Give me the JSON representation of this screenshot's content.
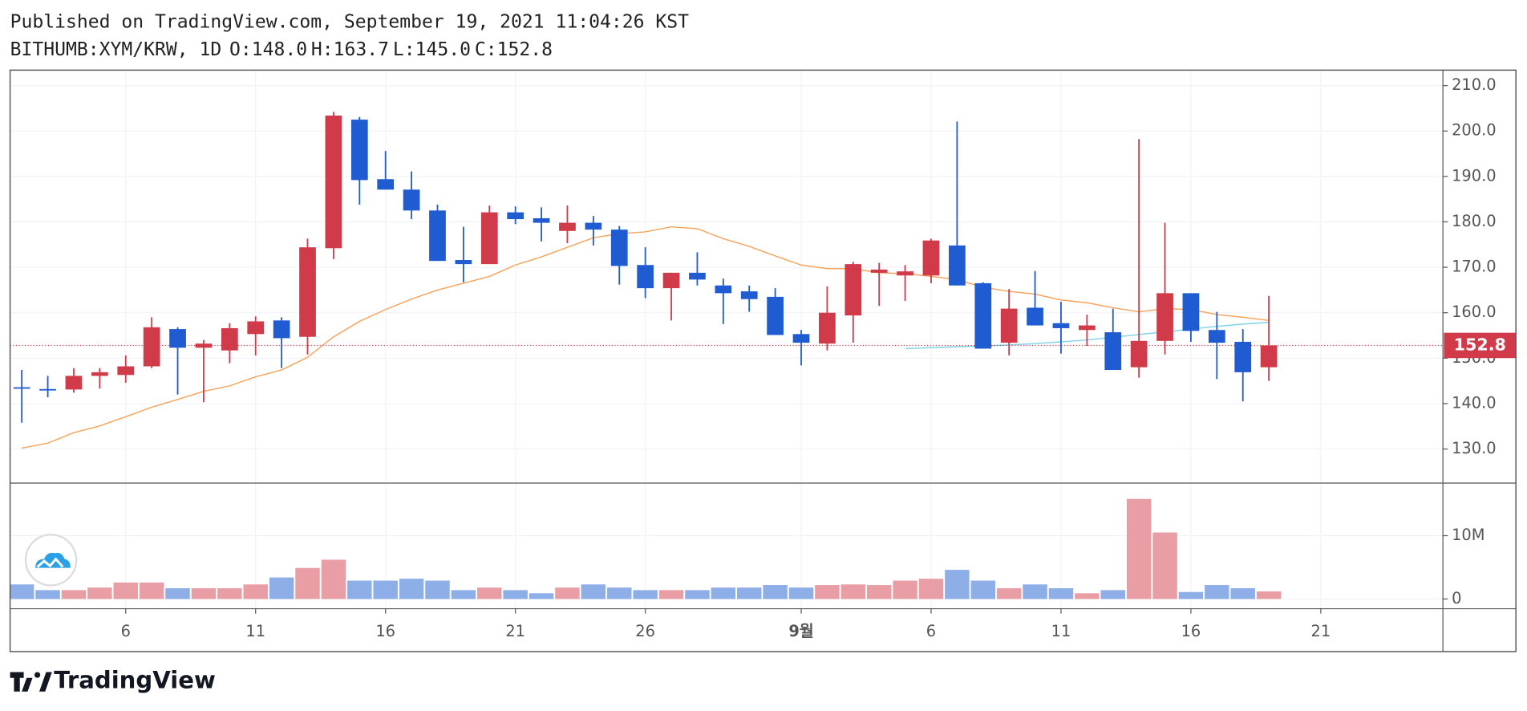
{
  "chart_data": {
    "type": "candlestick",
    "title": "Published on TradingView.com, September 19, 2021 11:04:26 KST",
    "subtitle": "BITHUMB:XYM/KRW, 1D",
    "ohlc_labels": [
      "O:148.0",
      "H:163.7",
      "L:145.0",
      "C:152.8"
    ],
    "brand": "TradingView",
    "x": [
      0,
      1,
      2,
      3,
      4,
      5,
      6,
      7,
      8,
      9,
      10,
      11,
      12,
      13,
      14,
      15,
      16,
      17,
      18,
      19,
      20,
      21,
      22,
      23,
      24,
      25,
      26,
      27,
      28,
      29,
      30,
      31,
      32,
      33,
      34,
      35,
      36,
      37,
      38,
      39,
      40,
      41,
      42,
      43,
      44,
      45,
      46,
      47,
      48
    ],
    "open": [
      143.6,
      143.2,
      143.1,
      146.1,
      146.3,
      148.2,
      156.4,
      152.3,
      151.7,
      155.3,
      158.3,
      154.7,
      174.2,
      202.5,
      189.4,
      187.1,
      182.5,
      171.6,
      170.7,
      182.1,
      180.8,
      178.0,
      179.8,
      178.3,
      170.5,
      165.4,
      168.8,
      166.0,
      164.7,
      163.5,
      155.3,
      153.2,
      159.4,
      168.8,
      168.2,
      168.2,
      174.8,
      166.5,
      153.4,
      161.1,
      157.7,
      156.2,
      155.7,
      148.0,
      153.8,
      164.3,
      156.2,
      153.6,
      148.0
    ],
    "high": [
      147.4,
      146.1,
      147.8,
      147.8,
      150.6,
      159.0,
      156.8,
      154.0,
      157.7,
      159.2,
      159.0,
      176.3,
      204.2,
      203.1,
      195.6,
      191.1,
      183.8,
      178.9,
      183.6,
      183.4,
      183.2,
      183.6,
      181.3,
      179.1,
      174.4,
      168.8,
      173.3,
      167.5,
      166.0,
      165.4,
      156.2,
      165.8,
      171.2,
      171.0,
      170.5,
      176.3,
      202.1,
      166.7,
      165.2,
      169.2,
      162.4,
      159.6,
      160.9,
      198.2,
      179.8,
      164.3,
      160.2,
      156.4,
      163.7
    ],
    "low": [
      135.8,
      141.4,
      142.4,
      143.3,
      144.6,
      147.8,
      142.0,
      140.3,
      148.9,
      150.6,
      147.8,
      150.8,
      171.8,
      183.8,
      187.1,
      180.6,
      171.4,
      166.7,
      170.7,
      179.5,
      175.7,
      175.3,
      174.8,
      166.2,
      163.2,
      158.3,
      166.0,
      157.5,
      160.2,
      155.1,
      148.4,
      151.7,
      153.4,
      161.5,
      162.6,
      166.5,
      166.0,
      152.1,
      150.6,
      157.2,
      151.0,
      152.7,
      147.4,
      145.7,
      150.8,
      153.6,
      145.4,
      140.5,
      145.0
    ],
    "close": [
      143.4,
      143.0,
      146.1,
      146.9,
      148.2,
      156.8,
      152.3,
      153.2,
      156.6,
      158.1,
      154.4,
      174.4,
      203.4,
      189.2,
      187.1,
      182.5,
      171.4,
      170.7,
      182.1,
      180.6,
      179.8,
      179.8,
      178.3,
      170.3,
      165.4,
      168.8,
      167.3,
      164.3,
      163.0,
      155.1,
      153.4,
      160.0,
      170.7,
      169.5,
      169.1,
      175.9,
      166.0,
      152.1,
      160.9,
      157.2,
      156.6,
      157.2,
      147.4,
      153.8,
      164.3,
      156.0,
      153.4,
      146.9,
      152.8
    ],
    "up_color": "#d13a48",
    "down_color": "#1f5bd1",
    "overlays": [
      {
        "color": "#f7a35c",
        "values": [
          130.2,
          131.3,
          133.6,
          135.1,
          137.1,
          139.2,
          140.9,
          142.7,
          143.9,
          145.9,
          147.4,
          150.2,
          154.7,
          158.1,
          160.7,
          163.0,
          165.0,
          166.5,
          168.0,
          170.5,
          172.3,
          174.4,
          176.5,
          177.4,
          177.8,
          178.9,
          178.5,
          176.3,
          174.6,
          172.5,
          170.5,
          169.7,
          169.7,
          168.8,
          168.6,
          168.0,
          167.3,
          165.6,
          164.7,
          164.1,
          162.8,
          162.2,
          161.1,
          160.2,
          160.9,
          160.7,
          159.6,
          159.0,
          158.3
        ]
      },
      {
        "color": "#7fd3e8",
        "values": [
          null,
          null,
          null,
          null,
          null,
          null,
          null,
          null,
          null,
          null,
          null,
          null,
          null,
          null,
          null,
          null,
          null,
          null,
          null,
          null,
          null,
          null,
          null,
          null,
          null,
          null,
          null,
          null,
          null,
          null,
          null,
          null,
          null,
          null,
          152.1,
          152.3,
          152.5,
          152.7,
          152.9,
          153.2,
          153.6,
          154.0,
          154.6,
          155.2,
          155.8,
          156.4,
          157.0,
          157.5,
          157.9
        ]
      }
    ],
    "last_price": {
      "value": 152.8,
      "label": "152.8"
    },
    "ylim": [
      122.5,
      213.4
    ],
    "yticks": [
      {
        "value": 130,
        "label": "130.0"
      },
      {
        "value": 140,
        "label": "140.0"
      },
      {
        "value": 150,
        "label": "150.0"
      },
      {
        "value": 160,
        "label": "160.0"
      },
      {
        "value": 170,
        "label": "170.0"
      },
      {
        "value": 180,
        "label": "180.0"
      },
      {
        "value": 190,
        "label": "190.0"
      },
      {
        "value": 200,
        "label": "200.0"
      },
      {
        "value": 210,
        "label": "210.0"
      }
    ],
    "xlim": [
      -0.45,
      54.7
    ],
    "xticks": [
      {
        "value": 4,
        "label": "6"
      },
      {
        "value": 9,
        "label": "11"
      },
      {
        "value": 14,
        "label": "16"
      },
      {
        "value": 19,
        "label": "21"
      },
      {
        "value": 24,
        "label": "26"
      },
      {
        "value": 30,
        "label": "9월"
      },
      {
        "value": 35,
        "label": "6"
      },
      {
        "value": 40,
        "label": "11"
      },
      {
        "value": 45,
        "label": "16"
      },
      {
        "value": 50,
        "label": "21"
      }
    ],
    "grid": true,
    "volume": {
      "values": [
        2300000,
        1400000,
        1400000,
        1800000,
        2600000,
        2600000,
        1700000,
        1700000,
        1700000,
        2300000,
        3400000,
        4900000,
        6200000,
        2900000,
        2900000,
        3200000,
        2900000,
        1400000,
        1800000,
        1400000,
        900000,
        1800000,
        2300000,
        1800000,
        1400000,
        1400000,
        1400000,
        1800000,
        1800000,
        2200000,
        1800000,
        2200000,
        2300000,
        2200000,
        2900000,
        3200000,
        4600000,
        2900000,
        1700000,
        2300000,
        1700000,
        900000,
        1400000,
        15800000,
        10500000,
        1100000,
        2200000,
        1700000,
        1200000
      ],
      "up_color": "#e89ea4",
      "down_color": "#8eaee8",
      "ylim": [
        -1540000,
        18150000
      ],
      "yticks": [
        0,
        {
          "value": 10000000,
          "label": "10M"
        }
      ]
    }
  }
}
